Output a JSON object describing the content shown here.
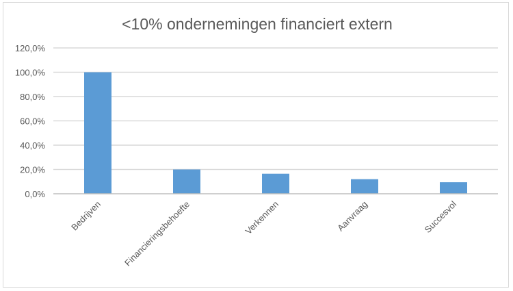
{
  "chart_data": {
    "type": "bar",
    "title": "<10% ondernemingen financiert extern",
    "categories": [
      "Bedrijven",
      "Financieringsbehoefte",
      "Verkennen",
      "Aanvraag",
      "Succesvol"
    ],
    "values": [
      100.0,
      20.0,
      16.5,
      12.0,
      9.5
    ],
    "ylim": [
      0,
      120
    ],
    "yticks": [
      0,
      20,
      40,
      60,
      80,
      100,
      120
    ],
    "ytick_labels": [
      "0,0%",
      "20,0%",
      "40,0%",
      "60,0%",
      "80,0%",
      "100,0%",
      "120,0%"
    ],
    "grid": true,
    "legend": "none",
    "bar_color": "#5b9bd5"
  }
}
